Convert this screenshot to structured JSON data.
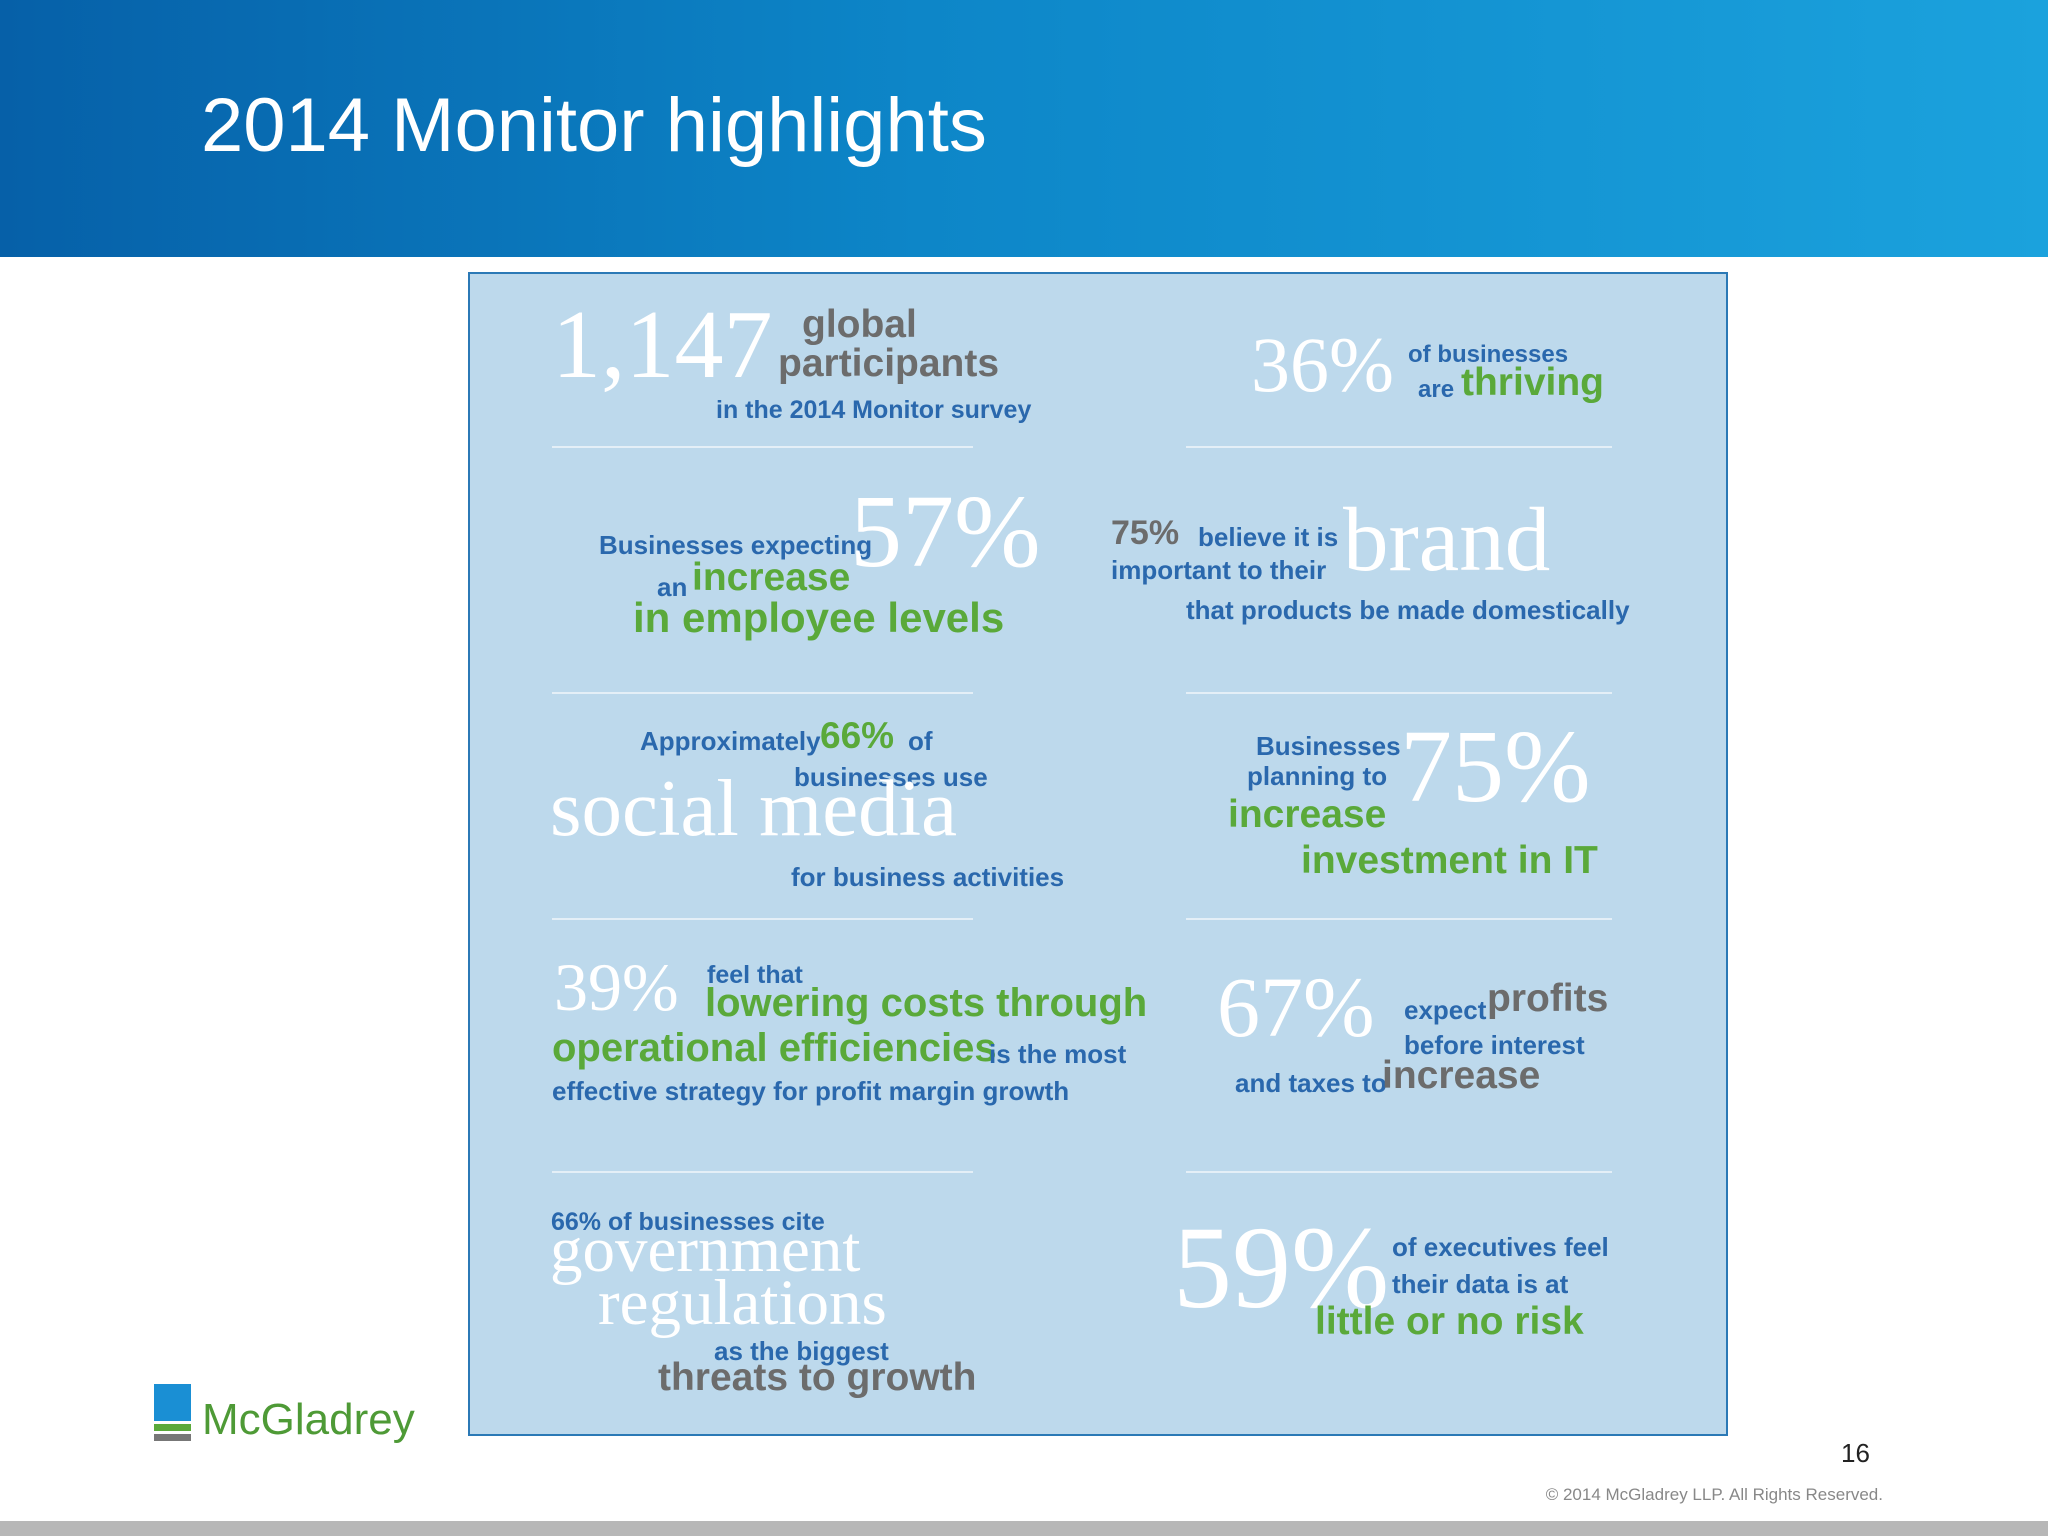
{
  "header": {
    "title": "2014 Monitor highlights"
  },
  "panel": {
    "cells": [
      {
        "parts": [
          "1,147",
          "global",
          "participants",
          "in the 2014 Monitor survey"
        ]
      },
      {
        "parts": [
          "36%",
          "of businesses",
          "are",
          "thriving"
        ]
      },
      {
        "parts": [
          "Businesses expecting",
          "an",
          "increase",
          "57%",
          "in employee levels"
        ]
      },
      {
        "parts": [
          "75%",
          "believe it is",
          "important to their",
          "brand",
          "that products be made domestically"
        ]
      },
      {
        "parts": [
          "Approximately",
          "66%",
          "of",
          "businesses use",
          "social media",
          "for business activities"
        ]
      },
      {
        "parts": [
          "Businesses",
          "planning to",
          "increase",
          "75%",
          "investment in IT"
        ]
      },
      {
        "parts": [
          "39%",
          "feel that",
          "lowering costs through",
          "operational efficiencies",
          "is the most",
          "effective strategy for profit margin growth"
        ]
      },
      {
        "parts": [
          "67%",
          "expect",
          "profits",
          "before interest",
          "and taxes to",
          "increase"
        ]
      },
      {
        "parts": [
          "66% of businesses cite",
          "government",
          "regulations",
          "as the biggest",
          "threats to growth"
        ]
      },
      {
        "parts": [
          "59%",
          "of executives feel",
          "their data is at",
          "little or no risk"
        ]
      }
    ]
  },
  "footer": {
    "logo": "McGladrey",
    "page_number": "16",
    "copyright": "© 2014 McGladrey LLP. All Rights Reserved."
  }
}
